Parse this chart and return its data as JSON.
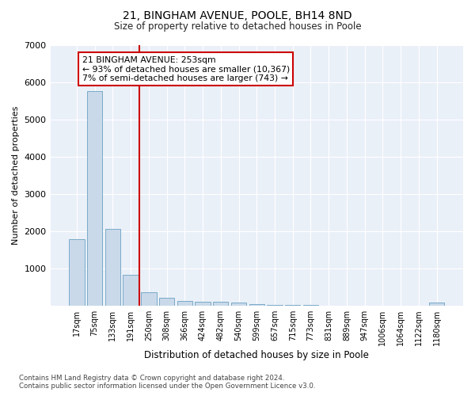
{
  "title1": "21, BINGHAM AVENUE, POOLE, BH14 8ND",
  "title2": "Size of property relative to detached houses in Poole",
  "xlabel": "Distribution of detached houses by size in Poole",
  "ylabel": "Number of detached properties",
  "bar_color": "#c9d9ea",
  "bar_edge_color": "#7aaac8",
  "vline_color": "#cc0000",
  "annotation_text": "21 BINGHAM AVENUE: 253sqm\n← 93% of detached houses are smaller (10,367)\n7% of semi-detached houses are larger (743) →",
  "annotation_box_color": "#ffffff",
  "annotation_box_edge_color": "#cc0000",
  "bins": [
    "17sqm",
    "75sqm",
    "133sqm",
    "191sqm",
    "250sqm",
    "308sqm",
    "366sqm",
    "424sqm",
    "482sqm",
    "540sqm",
    "599sqm",
    "657sqm",
    "715sqm",
    "773sqm",
    "831sqm",
    "889sqm",
    "947sqm",
    "1006sqm",
    "1064sqm",
    "1122sqm",
    "1180sqm"
  ],
  "values": [
    1780,
    5760,
    2060,
    820,
    360,
    210,
    120,
    100,
    100,
    80,
    50,
    30,
    20,
    15,
    10,
    8,
    5,
    5,
    5,
    5,
    80
  ],
  "ylim": [
    0,
    7000
  ],
  "yticks": [
    0,
    1000,
    2000,
    3000,
    4000,
    5000,
    6000,
    7000
  ],
  "footnote": "Contains HM Land Registry data © Crown copyright and database right 2024.\nContains public sector information licensed under the Open Government Licence v3.0.",
  "plot_bg_color": "#eaf0f8"
}
